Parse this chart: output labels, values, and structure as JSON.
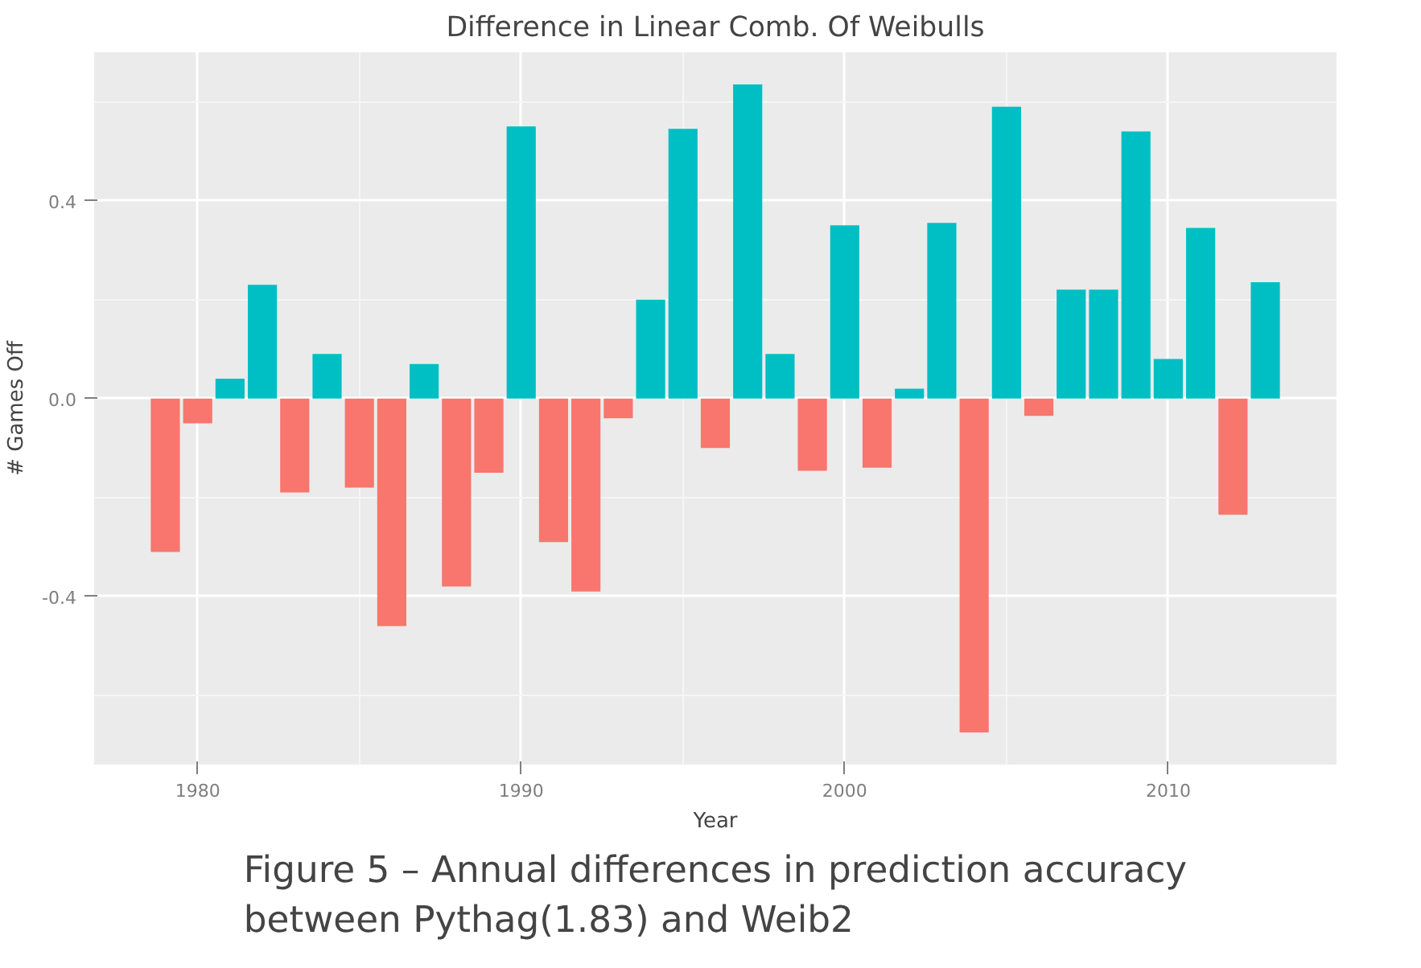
{
  "chart_data": {
    "type": "bar",
    "title": "Difference in Linear Comb. Of Weibulls",
    "xlabel": "Year",
    "ylabel": "# Games Off",
    "x": [
      1979,
      1980,
      1981,
      1982,
      1983,
      1984,
      1985,
      1986,
      1987,
      1988,
      1989,
      1990,
      1991,
      1992,
      1993,
      1994,
      1995,
      1996,
      1997,
      1998,
      1999,
      2000,
      2001,
      2002,
      2003,
      2004,
      2005,
      2006,
      2007,
      2008,
      2009,
      2010,
      2011,
      2012,
      2013
    ],
    "values": [
      -0.31,
      -0.05,
      0.04,
      0.23,
      -0.19,
      0.09,
      -0.18,
      -0.46,
      0.07,
      -0.38,
      -0.15,
      0.55,
      -0.29,
      -0.39,
      -0.04,
      0.2,
      0.545,
      -0.1,
      0.635,
      0.09,
      -0.146,
      0.35,
      -0.14,
      0.02,
      0.355,
      -0.675,
      0.59,
      -0.035,
      0.22,
      0.22,
      0.54,
      0.08,
      0.345,
      -0.235,
      0.235
    ],
    "colors": [
      "#f8766d",
      "#f8766d",
      "#00bfc4",
      "#00bfc4",
      "#f8766d",
      "#00bfc4",
      "#f8766d",
      "#f8766d",
      "#00bfc4",
      "#f8766d",
      "#f8766d",
      "#00bfc4",
      "#f8766d",
      "#f8766d",
      "#f8766d",
      "#00bfc4",
      "#00bfc4",
      "#f8766d",
      "#00bfc4",
      "#00bfc4",
      "#f8766d",
      "#00bfc4",
      "#f8766d",
      "#00bfc4",
      "#00bfc4",
      "#f8766d",
      "#00bfc4",
      "#f8766d",
      "#00bfc4",
      "#00bfc4",
      "#00bfc4",
      "#00bfc4",
      "#00bfc4",
      "#f8766d",
      "#00bfc4"
    ],
    "xlim": [
      1976.8,
      2015.2
    ],
    "ylim": [
      -0.74,
      0.7
    ],
    "xticks": [
      1980,
      1990,
      2000,
      2010
    ],
    "yticks": [
      {
        "value": -0.4,
        "label": "-0.4"
      },
      {
        "value": 0,
        "label": "0.0"
      },
      {
        "value": 0.4,
        "label": "0.4"
      }
    ],
    "grid": true,
    "annotations": [
      "Figure 5 – Annual differences in prediction accuracy between Pythag(1.83) and Weib2"
    ]
  }
}
